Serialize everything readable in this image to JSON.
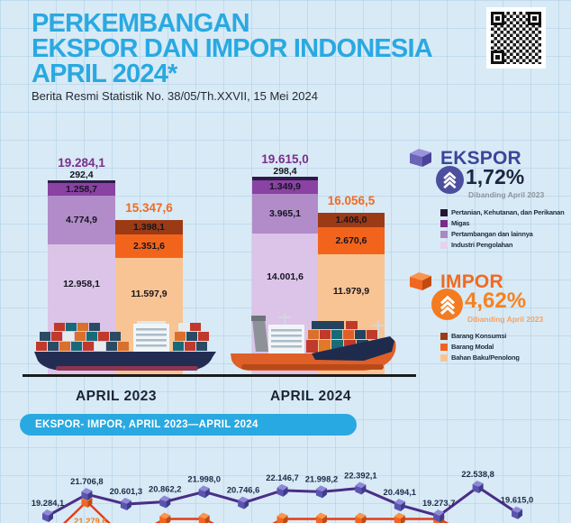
{
  "header": {
    "title_line1": "PERKEMBANGAN",
    "title_line2": "EKSPOR DAN IMPOR INDONESIA",
    "title_line3": "APRIL 2024*",
    "subtitle": "Berita Resmi Statistik No. 38/05/Th.XXVII, 15 Mei 2024"
  },
  "ekspor_panel": {
    "heading": "EKSPOR",
    "percent": "1,72%",
    "note": "Dibanding April 2023",
    "heading_color": "#3c459b",
    "circle_color": "#4c4f9e",
    "legend": [
      {
        "label": "Pertanian, Kehutanan, dan Perikanan",
        "color": "#241733"
      },
      {
        "label": "Migas",
        "color": "#7c2c86"
      },
      {
        "label": "Pertambangan dan lainnya",
        "color": "#a78abf"
      },
      {
        "label": "Industri Pengolahan",
        "color": "#e5d2ec"
      }
    ]
  },
  "impor_panel": {
    "heading": "IMPOR",
    "percent": "4,62%",
    "note": "Dibanding April 2023",
    "heading_color": "#f26a1f",
    "circle_color": "#f47b20",
    "legend": [
      {
        "label": "Barang Konsumsi",
        "color": "#9c3a16"
      },
      {
        "label": "Barang Modal",
        "color": "#f2641c"
      },
      {
        "label": "Bahan Baku/Penolong",
        "color": "#f9c493"
      }
    ]
  },
  "banner": {
    "label": "EKSPOR- IMPOR, APRIL 2023—APRIL 2024",
    "bg": "#29a9e1"
  },
  "chart_data": [
    {
      "type": "bar",
      "subtype": "stacked-grouped",
      "categories": [
        "APRIL 2023",
        "APRIL 2024"
      ],
      "ekspor_totals": {
        "values": [
          19284.1,
          19615.0
        ],
        "labels": [
          "19.284,1",
          "19.615,0"
        ]
      },
      "impor_totals": {
        "values": [
          15347.6,
          16056.5
        ],
        "labels": [
          "15.347,6",
          "16.056,5"
        ]
      },
      "series_ekspor": [
        {
          "name": "Pertanian, Kehutanan, dan Perikanan",
          "values": [
            292.4,
            298.4
          ],
          "labels": [
            "292,4",
            "298,4"
          ],
          "color": "#2e1a47"
        },
        {
          "name": "Migas",
          "values": [
            1258.7,
            1349.9
          ],
          "labels": [
            "1.258,7",
            "1.349,9"
          ],
          "color": "#8a42a3"
        },
        {
          "name": "Pertambangan dan lainnya",
          "values": [
            4774.9,
            3965.1
          ],
          "labels": [
            "4.774,9",
            "3.965,1"
          ],
          "color": "#b18cc9"
        },
        {
          "name": "Industri Pengolahan",
          "values": [
            12958.1,
            14001.6
          ],
          "labels": [
            "12.958,1",
            "14.001,6"
          ],
          "color": "#dcc3e8"
        }
      ],
      "series_impor": [
        {
          "name": "Barang Konsumsi",
          "values": [
            1398.1,
            1406.0
          ],
          "labels": [
            "1.398,1",
            "1.406,0"
          ],
          "color": "#9c3a16"
        },
        {
          "name": "Barang Modal",
          "values": [
            2351.6,
            2670.6
          ],
          "labels": [
            "2.351,6",
            "2.670,6"
          ],
          "color": "#f2641c"
        },
        {
          "name": "Bahan Baku/Penolong",
          "values": [
            11597.9,
            11979.9
          ],
          "labels": [
            "11.597,9",
            "11.979,9"
          ],
          "color": "#f9c493"
        }
      ]
    },
    {
      "type": "line",
      "title": "EKSPOR- IMPOR, APRIL 2023—APRIL 2024",
      "x_points": 13,
      "series": [
        {
          "name": "Ekspor",
          "line_color": "#4b2d87",
          "label_color": "#1d2b49",
          "cube": {
            "front": "#5b54ae",
            "side": "#3f3a8a",
            "top": "#8f87d8"
          },
          "values": [
            19284.1,
            21706.8,
            20601.3,
            20862.2,
            21998.0,
            20746.6,
            22146.7,
            21998.2,
            22392.1,
            20494.1,
            19273.7,
            22538.8,
            19615.0
          ],
          "labels": [
            "19.284,1",
            "21.706,8",
            "20.601,3",
            "20.862,2",
            "21.998,0",
            "20.746,6",
            "22.146,7",
            "21.998,2",
            "22.392,1",
            "20.494,1",
            "19.273,7",
            "22.538,8",
            "19.615,0"
          ]
        },
        {
          "name": "Impor",
          "line_color": "#e63a15",
          "label_color": "#f07f1e",
          "cube": {
            "front": "#f26522",
            "side": "#c24a10",
            "top": "#f9944a"
          },
          "labels_visible": [
            {
              "index": 1,
              "label": "21.279,6"
            }
          ],
          "marker_indices_visible": [
            1,
            3,
            4,
            6,
            7,
            8,
            9,
            10
          ],
          "partially_cropped": true
        }
      ]
    }
  ]
}
